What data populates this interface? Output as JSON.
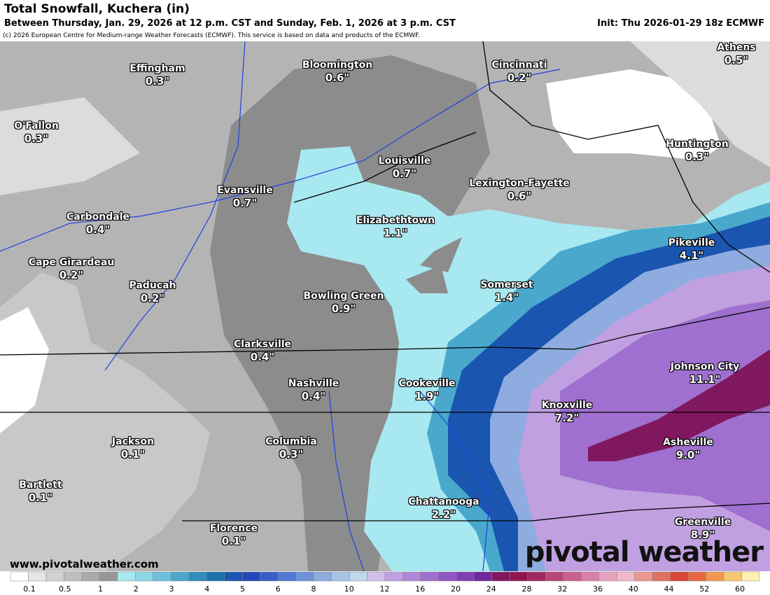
{
  "header": {
    "title": "Total Snowfall, Kuchera (in)",
    "subtitle": "Between Thursday, Jan. 29, 2026 at 12 p.m. CST and Sunday, Feb. 1, 2026 at 3 p.m. CST",
    "init": "Init: Thu 2026-01-29 18z ECMWF",
    "copyright": "(c) 2026 European Centre for Medium-range Weather Forecasts (ECMWF). This service is based on data and products of the ECMWF."
  },
  "cities": [
    {
      "name": "Effingham",
      "value": "0.3\""
    },
    {
      "name": "Bloomington",
      "value": "0.6\""
    },
    {
      "name": "Cincinnati",
      "value": "0.2\""
    },
    {
      "name": "Athens",
      "value": "0.5\""
    },
    {
      "name": "O'Fallon",
      "value": "0.3\""
    },
    {
      "name": "Huntington",
      "value": "0.3\""
    },
    {
      "name": "Louisville",
      "value": "0.7\""
    },
    {
      "name": "Lexington-Fayette",
      "value": "0.6\""
    },
    {
      "name": "Evansville",
      "value": "0.7\""
    },
    {
      "name": "Carbondale",
      "value": "0.4\""
    },
    {
      "name": "Elizabethtown",
      "value": "1.1\""
    },
    {
      "name": "Pikeville",
      "value": "4.1\""
    },
    {
      "name": "Cape Girardeau",
      "value": "0.2\""
    },
    {
      "name": "Paducah",
      "value": "0.2\""
    },
    {
      "name": "Bowling Green",
      "value": "0.9\""
    },
    {
      "name": "Somerset",
      "value": "1.4\""
    },
    {
      "name": "Clarksville",
      "value": "0.4\""
    },
    {
      "name": "Johnson City",
      "value": "11.1\""
    },
    {
      "name": "Nashville",
      "value": "0.4\""
    },
    {
      "name": "Cookeville",
      "value": "1.9\""
    },
    {
      "name": "Knoxville",
      "value": "7.2\""
    },
    {
      "name": "Jackson",
      "value": "0.1\""
    },
    {
      "name": "Columbia",
      "value": "0.3\""
    },
    {
      "name": "Asheville",
      "value": "9.0\""
    },
    {
      "name": "Bartlett",
      "value": "0.1\""
    },
    {
      "name": "Chattanooga",
      "value": "2.2\""
    },
    {
      "name": "Florence",
      "value": "0.1\""
    },
    {
      "name": "Greenville",
      "value": "8.9\""
    }
  ],
  "footer": {
    "website": "www.pivotalweather.com",
    "brand": "pivotal weather"
  },
  "legend": {
    "labels": [
      "0.1",
      "0.5",
      "1",
      "2",
      "3",
      "4",
      "5",
      "6",
      "8",
      "10",
      "12",
      "16",
      "20",
      "24",
      "28",
      "32",
      "36",
      "40",
      "44",
      "52",
      "60"
    ],
    "colors": [
      "#ffffff",
      "#e6e6e6",
      "#d2d2d2",
      "#bebebe",
      "#aaaaaa",
      "#969696",
      "#a8e8f0",
      "#8cd6e6",
      "#6cc0dc",
      "#4aa8cc",
      "#2f8cbc",
      "#1c70aa",
      "#1a56b0",
      "#2844b8",
      "#3a5ec8",
      "#5078d0",
      "#6e92d8",
      "#8eacdf",
      "#a8c4e6",
      "#c0d8ee",
      "#d0c0e8",
      "#c0a0e0",
      "#b088d8",
      "#a070d0",
      "#9058c4",
      "#8040b4",
      "#70289c",
      "#801860",
      "#901450",
      "#a02860",
      "#b84478",
      "#c86090",
      "#d880a8",
      "#e8a0c0",
      "#f0b8c8",
      "#e89890",
      "#e07060",
      "#d84838",
      "#e86840",
      "#f09850",
      "#f8c870",
      "#fff0b0"
    ]
  }
}
